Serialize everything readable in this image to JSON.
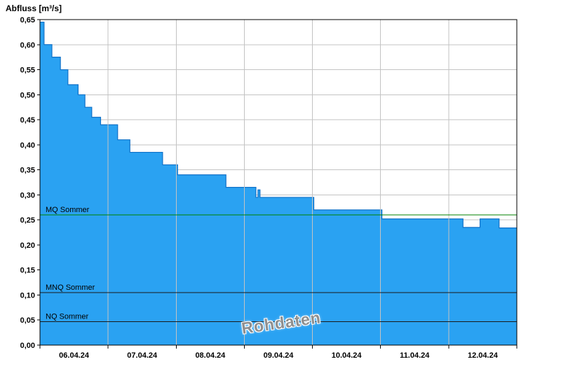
{
  "axis_title": "Abfluss [m³/s]",
  "watermark": "Rohdaten",
  "chart_data": {
    "type": "area",
    "step": true,
    "title": "",
    "ylabel": "Abfluss [m³/s]",
    "xlabel": "",
    "ylim": [
      0,
      0.65
    ],
    "ytick_step": 0.05,
    "decimal_separator": ",",
    "grid": true,
    "x_range_days": 7,
    "x_day_labels": [
      "06.04.24",
      "07.04.24",
      "08.04.24",
      "09.04.24",
      "10.04.24",
      "11.04.24",
      "12.04.24"
    ],
    "series": [
      {
        "name": "Abfluss Rohdaten",
        "points": [
          [
            0.0,
            0.645
          ],
          [
            0.06,
            0.6
          ],
          [
            0.175,
            0.575
          ],
          [
            0.3,
            0.55
          ],
          [
            0.41,
            0.52
          ],
          [
            0.56,
            0.5
          ],
          [
            0.66,
            0.475
          ],
          [
            0.76,
            0.455
          ],
          [
            0.89,
            0.44
          ],
          [
            1.14,
            0.41
          ],
          [
            1.32,
            0.385
          ],
          [
            1.8,
            0.36
          ],
          [
            2.02,
            0.34
          ],
          [
            2.73,
            0.315
          ],
          [
            3.17,
            0.295
          ],
          [
            3.2,
            0.31
          ],
          [
            3.23,
            0.295
          ],
          [
            4.02,
            0.27
          ],
          [
            5.02,
            0.252
          ],
          [
            6.21,
            0.235
          ],
          [
            6.46,
            0.252
          ],
          [
            6.74,
            0.234
          ]
        ]
      }
    ],
    "ref_lines": [
      {
        "label": "MQ Sommer",
        "value": 0.26,
        "color": "#008200"
      },
      {
        "label": "MNQ Sommer",
        "value": 0.105,
        "color": "#1a1a1a"
      },
      {
        "label": "NQ Sommer",
        "value": 0.047,
        "color": "#1a1a1a"
      }
    ],
    "colors": {
      "area_fill": "#2AA2F2",
      "area_stroke": "#1372C8",
      "grid": "#c3c3c3",
      "axis": "#000000",
      "tick_text": "#000000"
    },
    "legend_position": "none"
  }
}
